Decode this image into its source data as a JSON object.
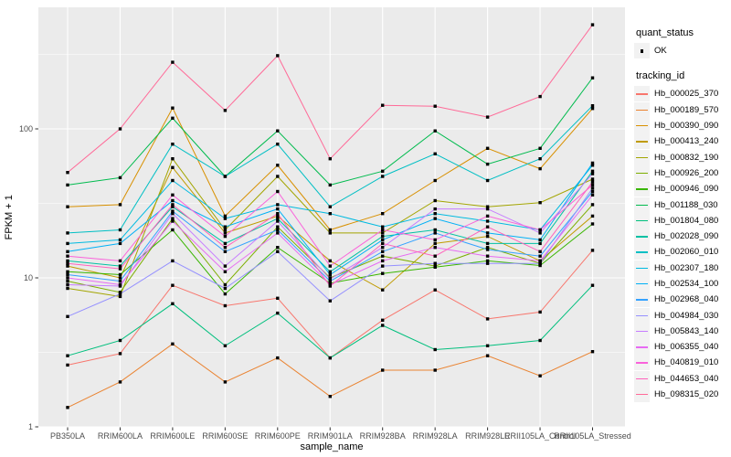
{
  "axes": {
    "xlabel": "sample_name",
    "ylabel": "FPKM + 1",
    "ytick_labels": [
      "1",
      "10",
      "100"
    ]
  },
  "legend": {
    "quant_title": "quant_status",
    "quant_label": "OK",
    "quant_marker": "filled-square-point",
    "tracking_title": "tracking_id"
  },
  "colors": {
    "panel_bg": "#EBEBEB",
    "grid": "#FFFFFF",
    "point": "#000000",
    "tick_label": "#4D4D4D",
    "axis_title": "#000000",
    "legend_key_bg": "#F2F2F2"
  },
  "chart_data": {
    "type": "line",
    "log_y": true,
    "title": "",
    "xlabel": "sample_name",
    "ylabel": "FPKM + 1",
    "yticks": [
      1,
      10,
      100
    ],
    "yticks_minor": [
      3.162,
      31.62,
      316.2
    ],
    "ylim": [
      1,
      550
    ],
    "grid": "major-and-minor, white on gray panel",
    "legend_position": "right",
    "point_marker": "filled-square",
    "quant_status": "OK",
    "categories": [
      "PB350LA",
      "RRIM600LA",
      "RRIM600LE",
      "RRIM600SE",
      "RRIM600PE",
      "RRIM901LA",
      "RRIM928BA",
      "RRIM928LA",
      "RRIM928LE",
      "RRII105LA_Control",
      "RRII105LA_Stressed"
    ],
    "series": [
      {
        "name": "Hb_000025_370",
        "color": "#F8766D",
        "values": [
          2.6,
          3.1,
          8.9,
          6.5,
          7.3,
          2.9,
          5.2,
          8.3,
          5.3,
          5.9,
          15.3
        ]
      },
      {
        "name": "Hb_000189_570",
        "color": "#EA8331",
        "values": [
          1.35,
          2.0,
          3.6,
          2.0,
          2.9,
          1.6,
          2.4,
          2.4,
          3.0,
          2.2,
          3.2
        ]
      },
      {
        "name": "Hb_000390_090",
        "color": "#D89000",
        "values": [
          30,
          31,
          138,
          26,
          57,
          21,
          27,
          45,
          74,
          54,
          137
        ]
      },
      {
        "name": "Hb_000413_240",
        "color": "#C09B00",
        "values": [
          12,
          10,
          55,
          20,
          26,
          13,
          8.3,
          17,
          19,
          13,
          26
        ]
      },
      {
        "name": "Hb_000832_190",
        "color": "#A3A500",
        "values": [
          8.5,
          7.5,
          63,
          21,
          48,
          20,
          20,
          33,
          30,
          32,
          46
        ]
      },
      {
        "name": "Hb_000926_200",
        "color": "#7CAE00",
        "values": [
          9.5,
          8.0,
          25,
          9.0,
          22,
          10,
          14,
          12,
          16,
          12.5,
          31
        ]
      },
      {
        "name": "Hb_000946_090",
        "color": "#39B600",
        "values": [
          11,
          10.5,
          21,
          7.8,
          16,
          9.2,
          10.7,
          11.8,
          13,
          12.1,
          23
        ]
      },
      {
        "name": "Hb_001188_030",
        "color": "#00BB4E",
        "values": [
          42,
          47,
          118,
          48,
          97,
          42,
          52,
          97,
          58,
          74,
          220
        ]
      },
      {
        "name": "Hb_001804_080",
        "color": "#00BF7D",
        "values": [
          3.0,
          3.8,
          6.7,
          3.5,
          5.8,
          2.9,
          4.8,
          3.3,
          3.5,
          3.8,
          8.9
        ]
      },
      {
        "name": "Hb_002028_090",
        "color": "#00C1A3",
        "values": [
          13,
          12,
          30,
          17,
          25,
          11,
          19,
          21,
          17,
          17,
          52
        ]
      },
      {
        "name": "Hb_002060_010",
        "color": "#00BFC4",
        "values": [
          20,
          21,
          79,
          48,
          79,
          30,
          48,
          68,
          45,
          63,
          143
        ]
      },
      {
        "name": "Hb_002307_180",
        "color": "#00BAE0",
        "values": [
          17,
          18,
          45,
          25,
          31,
          27,
          22,
          27,
          24,
          21,
          57
        ]
      },
      {
        "name": "Hb_002534_100",
        "color": "#00B0F6",
        "values": [
          15,
          17,
          33,
          22,
          29,
          10.5,
          18,
          25,
          20,
          18,
          59
        ]
      },
      {
        "name": "Hb_002968_040",
        "color": "#35A2FF",
        "values": [
          10.5,
          9.5,
          28,
          15,
          21,
          9.5,
          15,
          20,
          15.5,
          14,
          38
        ]
      },
      {
        "name": "Hb_004984_030",
        "color": "#9590FF",
        "values": [
          5.5,
          7.8,
          13,
          8.5,
          15,
          7.0,
          12,
          12.5,
          12.5,
          12.5,
          40
        ]
      },
      {
        "name": "Hb_005843_140",
        "color": "#C77CFF",
        "values": [
          9.0,
          8.8,
          27,
          12,
          24,
          9.8,
          16,
          29,
          29,
          20,
          50
        ]
      },
      {
        "name": "Hb_006355_040",
        "color": "#E76BF3",
        "values": [
          10,
          9.0,
          24,
          11,
          20,
          9.0,
          13,
          16,
          14,
          13,
          36
        ]
      },
      {
        "name": "Hb_040819_010",
        "color": "#FA62DB",
        "values": [
          14,
          13,
          36,
          19,
          38,
          12,
          21,
          18,
          26,
          21,
          42
        ]
      },
      {
        "name": "Hb_044653_040",
        "color": "#FF62BC",
        "values": [
          12.5,
          11.5,
          31,
          16,
          27,
          8.8,
          17,
          14,
          22,
          15,
          44
        ]
      },
      {
        "name": "Hb_098315_020",
        "color": "#FF6A98",
        "values": [
          51,
          100,
          280,
          133,
          310,
          63,
          144,
          142,
          120,
          165,
          500
        ]
      }
    ]
  }
}
